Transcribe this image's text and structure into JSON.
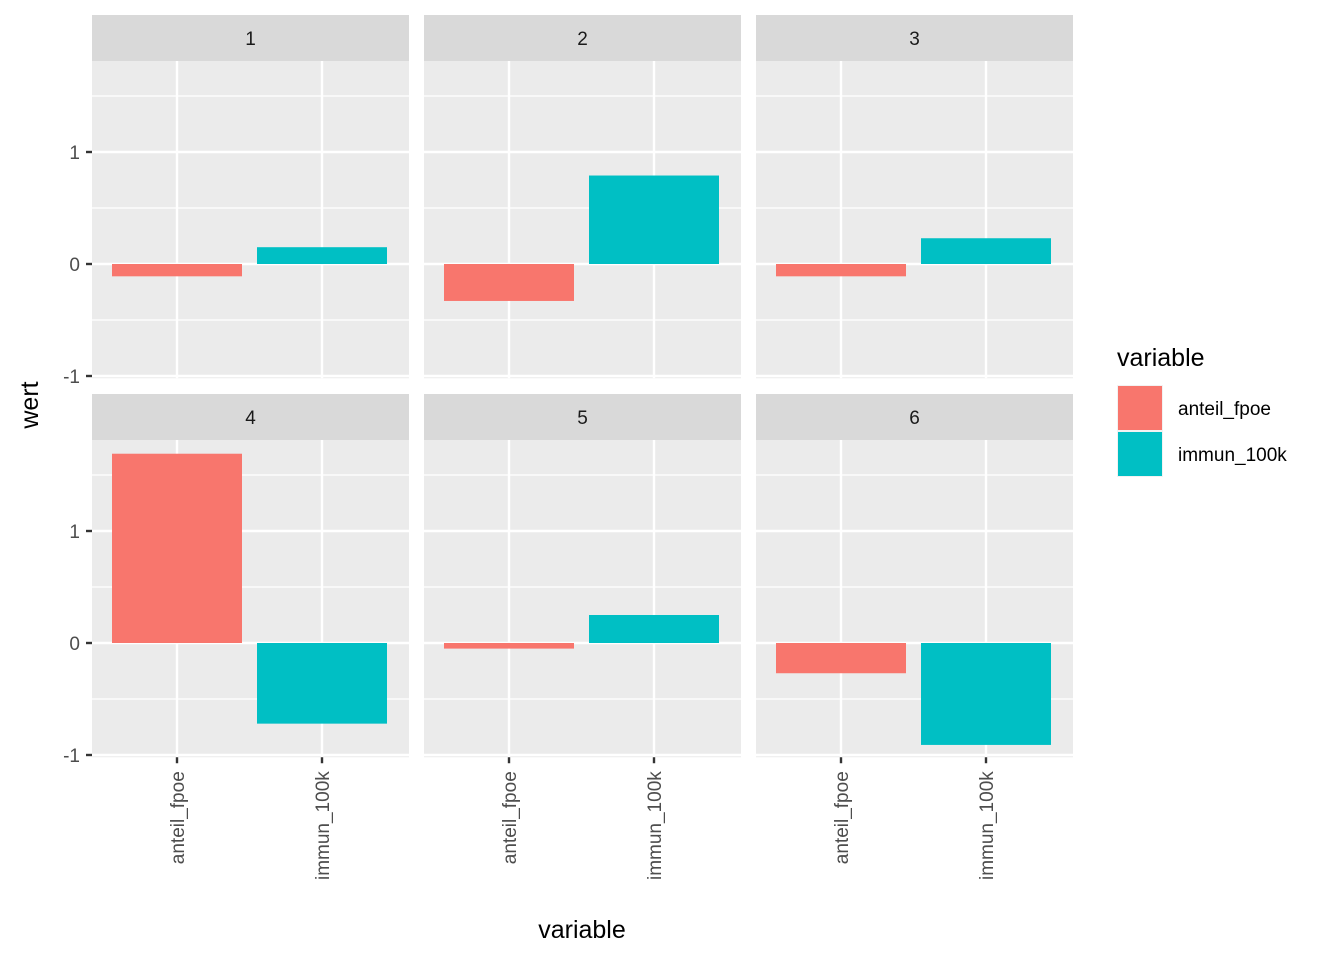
{
  "chart_data": {
    "type": "bar",
    "facet": "wrap",
    "panels": [
      "1",
      "2",
      "3",
      "4",
      "5",
      "6"
    ],
    "categories": [
      "anteil_fpoe",
      "immun_100k"
    ],
    "values": [
      [
        -0.11,
        0.15
      ],
      [
        -0.33,
        0.79
      ],
      [
        -0.11,
        0.23
      ],
      [
        1.69,
        -0.72
      ],
      [
        -0.05,
        0.25
      ],
      [
        -0.27,
        -0.91
      ]
    ],
    "colors": {
      "anteil_fpoe": "#F8766D",
      "immun_100k": "#00BFC4"
    },
    "xlabel": "variable",
    "ylabel": "wert",
    "ylim": [
      -1.02,
      1.88
    ],
    "yticks": [
      -1,
      0,
      1
    ],
    "ytick_labels": [
      "-1",
      "0",
      "1"
    ],
    "grid": true,
    "legend": {
      "title": "variable",
      "position": "right",
      "entries": [
        "anteil_fpoe",
        "immun_100k"
      ]
    }
  }
}
